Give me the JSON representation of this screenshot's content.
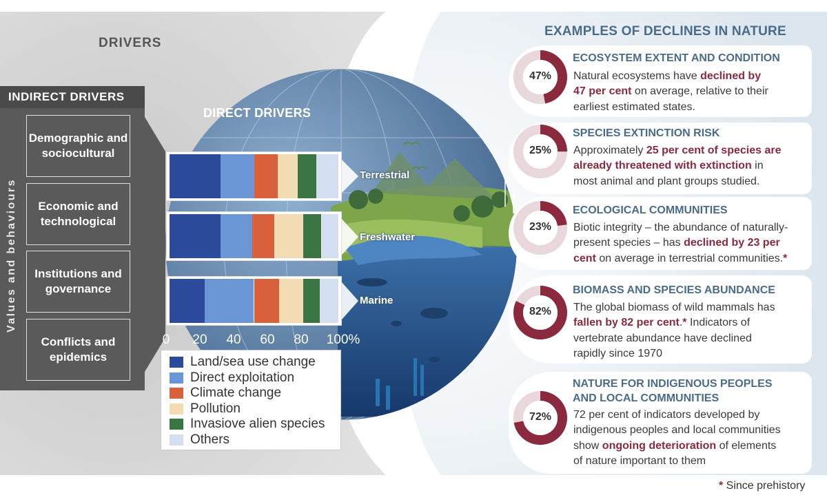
{
  "drivers_title": "DRIVERS",
  "indirect_drivers": {
    "header": "INDIRECT DRIVERS",
    "side_label": "Values and behaviours",
    "items": [
      "Demographic and sociocultural",
      "Economic and technological",
      "Institutions and governance",
      "Conflicts and epidemics"
    ]
  },
  "direct_drivers_title": "DIRECT DRIVERS",
  "chart_data": {
    "type": "bar",
    "orientation": "horizontal",
    "stacked": true,
    "title": "DIRECT DRIVERS",
    "categories": [
      "Terrestrial",
      "Freshwater",
      "Marine"
    ],
    "series": [
      {
        "name": "Land/sea use change",
        "color": "#2d4b9c",
        "values": [
          30,
          30,
          21
        ]
      },
      {
        "name": "Direct exploitation",
        "color": "#6b96d6",
        "values": [
          20,
          19,
          29
        ]
      },
      {
        "name": "Climate change",
        "color": "#d8603a",
        "values": [
          14,
          13,
          15
        ]
      },
      {
        "name": "Pollution",
        "color": "#f3dcb4",
        "values": [
          12,
          17,
          14
        ]
      },
      {
        "name": "Invasiove alien species",
        "color": "#3a7443",
        "values": [
          11,
          11,
          10
        ]
      },
      {
        "name": "Others",
        "color": "#d3def0",
        "values": [
          13,
          10,
          11
        ]
      }
    ],
    "x_ticks": [
      "0",
      "20",
      "40",
      "60",
      "80",
      "100%"
    ],
    "xlim": [
      0,
      100
    ],
    "legend_position": "bottom"
  },
  "examples_title": "EXAMPLES OF DECLINES IN NATURE",
  "examples": [
    {
      "title": "ECOSYSTEM EXTENT AND CONDITION",
      "percent": 47,
      "percent_label": "47%",
      "text": [
        [
          {
            "t": "Natural ecosystems have "
          },
          {
            "t": "declined by",
            "b": true
          }
        ],
        [
          {
            "t": "47 per cent",
            "b": true
          },
          {
            "t": " on average, relative to their"
          }
        ],
        [
          {
            "t": "earliest estimated states."
          }
        ]
      ]
    },
    {
      "title": "SPECIES EXTINCTION RISK",
      "percent": 25,
      "percent_label": "25%",
      "text": [
        [
          {
            "t": "Approximately "
          },
          {
            "t": "25 per cent of species are",
            "b": true
          }
        ],
        [
          {
            "t": "already threatened with extinction",
            "b": true
          },
          {
            "t": " in"
          }
        ],
        [
          {
            "t": "most animal and plant groups studied."
          }
        ]
      ]
    },
    {
      "title": "ECOLOGICAL COMMUNITIES",
      "percent": 23,
      "percent_label": "23%",
      "text": [
        [
          {
            "t": "Biotic integrity – the abundance of naturally-"
          }
        ],
        [
          {
            "t": "present species –  has "
          },
          {
            "t": "declined by 23 per",
            "b": true
          }
        ],
        [
          {
            "t": "cent",
            "b": true
          },
          {
            "t": " on average in terrestrial communities."
          },
          {
            "t": "*",
            "b": true
          }
        ]
      ]
    },
    {
      "title": "BIOMASS AND SPECIES ABUNDANCE",
      "percent": 82,
      "percent_label": "82%",
      "text": [
        [
          {
            "t": "The global biomass of wild mammals has"
          }
        ],
        [
          {
            "t": "fallen by 82 per cent",
            "b": true
          },
          {
            "t": "."
          },
          {
            "t": "*",
            "b": true
          },
          {
            "t": " Indicators of"
          }
        ],
        [
          {
            "t": "vertebrate abundance have declined"
          }
        ],
        [
          {
            "t": "rapidly since 1970"
          }
        ]
      ]
    },
    {
      "title": "NATURE FOR INDIGENOUS PEOPLES AND LOCAL COMMUNITIES",
      "title_lines": [
        "NATURE FOR INDIGENOUS PEOPLES",
        "AND LOCAL COMMUNITIES"
      ],
      "percent": 72,
      "percent_label": "72%",
      "text": [
        [
          {
            "t": "72 per cent of indicators developed by"
          }
        ],
        [
          {
            "t": "indigenous peoples and local communities"
          }
        ],
        [
          {
            "t": "show "
          },
          {
            "t": "ongoing deterioration",
            "b": true
          },
          {
            "t": " of elements"
          }
        ],
        [
          {
            "t": "of nature important to them"
          }
        ]
      ]
    }
  ],
  "footnote": {
    "star": "*",
    "text": " Since prehistory"
  },
  "colors": {
    "accent": "#8b2a3e",
    "donut_bg": "#e8d8dc",
    "heading": "#4a6b8a"
  }
}
